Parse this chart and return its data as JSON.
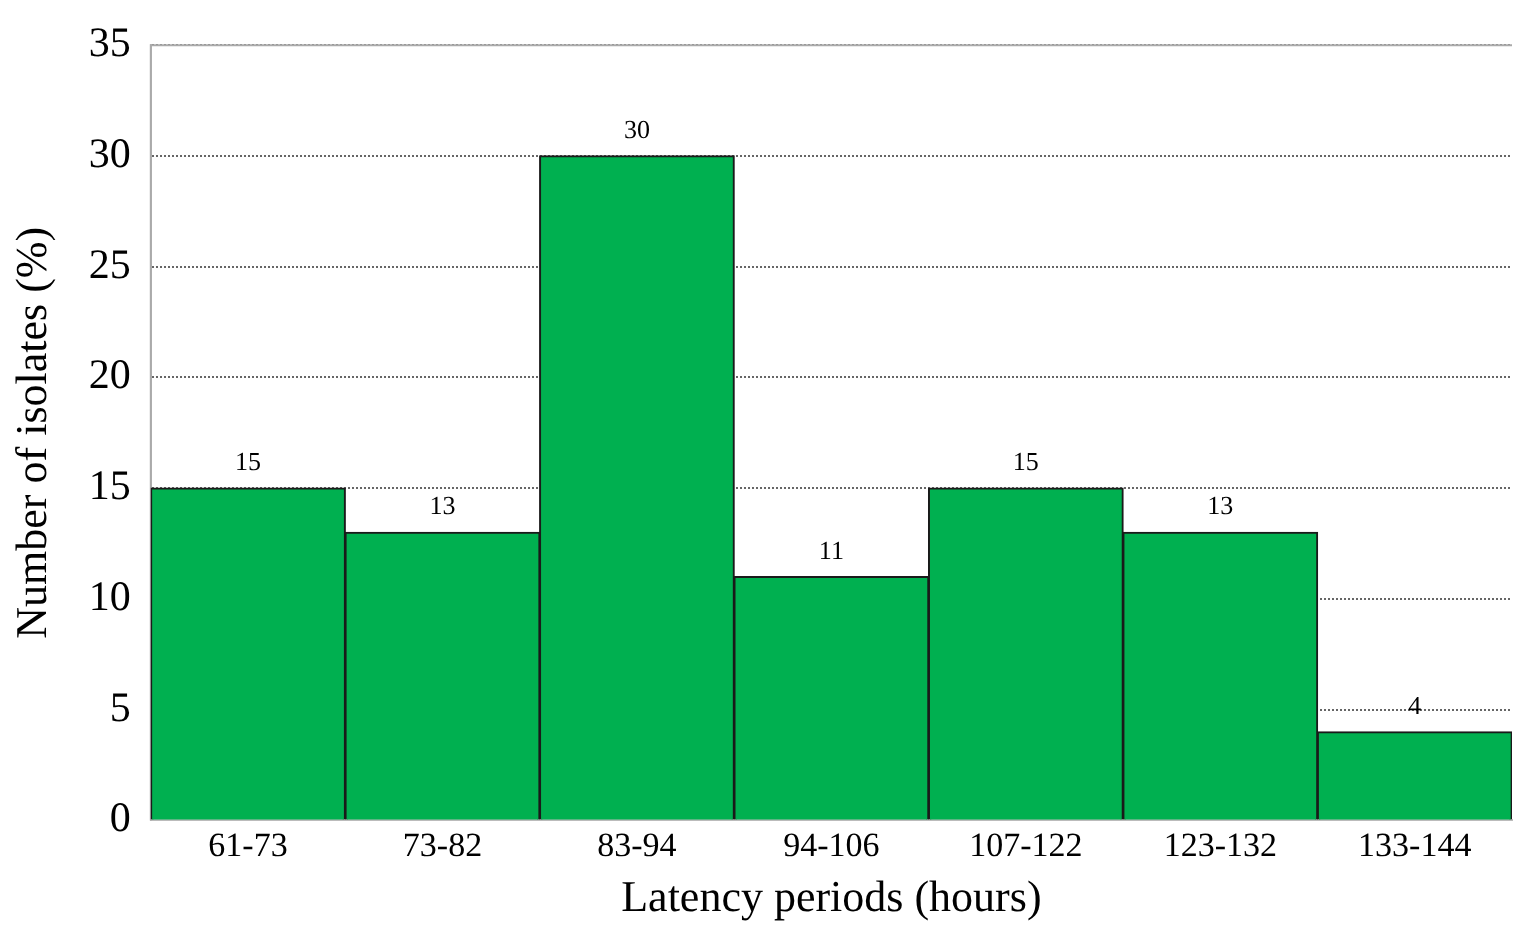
{
  "chart_data": {
    "type": "bar",
    "xlabel": "Latency periods (hours)",
    "ylabel": "Number of isolates (%)",
    "categories": [
      "61-73",
      "73-82",
      "83-94",
      "94-106",
      "107-122",
      "123-132",
      "133-144"
    ],
    "values": [
      15,
      13,
      30,
      11,
      15,
      13,
      4
    ],
    "data_labels": true,
    "color": "#00b050",
    "ylim": [
      0,
      35
    ],
    "yticks": [
      0,
      5,
      10,
      15,
      20,
      25,
      30,
      35
    ],
    "grid": "y",
    "legend": false
  }
}
